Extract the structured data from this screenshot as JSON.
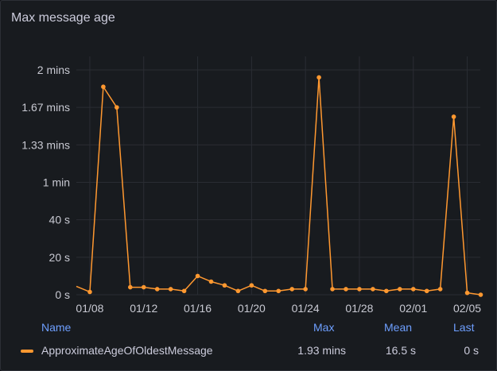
{
  "panel": {
    "title": "Max message age"
  },
  "chart_data": {
    "type": "line",
    "x_ticks": [
      "01/08",
      "01/12",
      "01/16",
      "01/20",
      "01/24",
      "01/28",
      "02/01",
      "02/05"
    ],
    "y_ticks": [
      "0 s",
      "20 s",
      "40 s",
      "1 min",
      "1.33 mins",
      "1.67 mins",
      "2 mins"
    ],
    "y_unit": "seconds",
    "ylim": [
      0,
      120
    ],
    "grid": true,
    "series": [
      {
        "name": "ApproximateAgeOfOldestMessage",
        "color": "#ff9830",
        "x": [
          "01/07",
          "01/08",
          "01/09",
          "01/10",
          "01/11",
          "01/12",
          "01/13",
          "01/14",
          "01/15",
          "01/16",
          "01/17",
          "01/18",
          "01/19",
          "01/20",
          "01/21",
          "01/22",
          "01/23",
          "01/24",
          "01/25",
          "01/26",
          "01/27",
          "01/28",
          "01/29",
          "01/30",
          "01/31",
          "02/01",
          "02/02",
          "02/03",
          "02/04",
          "02/05",
          "02/06"
        ],
        "values": [
          4.5,
          1.5,
          111,
          100,
          4,
          4,
          3,
          3,
          2,
          10,
          7,
          5,
          2,
          5,
          2,
          2,
          3,
          3,
          116,
          3,
          3,
          3,
          3,
          2,
          3,
          3,
          2,
          3,
          95,
          1,
          0
        ]
      }
    ]
  },
  "legend": {
    "headers": {
      "name": "Name",
      "max": "Max",
      "mean": "Mean",
      "last": "Last"
    },
    "rows": [
      {
        "name": "ApproximateAgeOfOldestMessage",
        "max": "1.93 mins",
        "mean": "16.5 s",
        "last": "0 s",
        "color": "#ff9830"
      }
    ]
  }
}
